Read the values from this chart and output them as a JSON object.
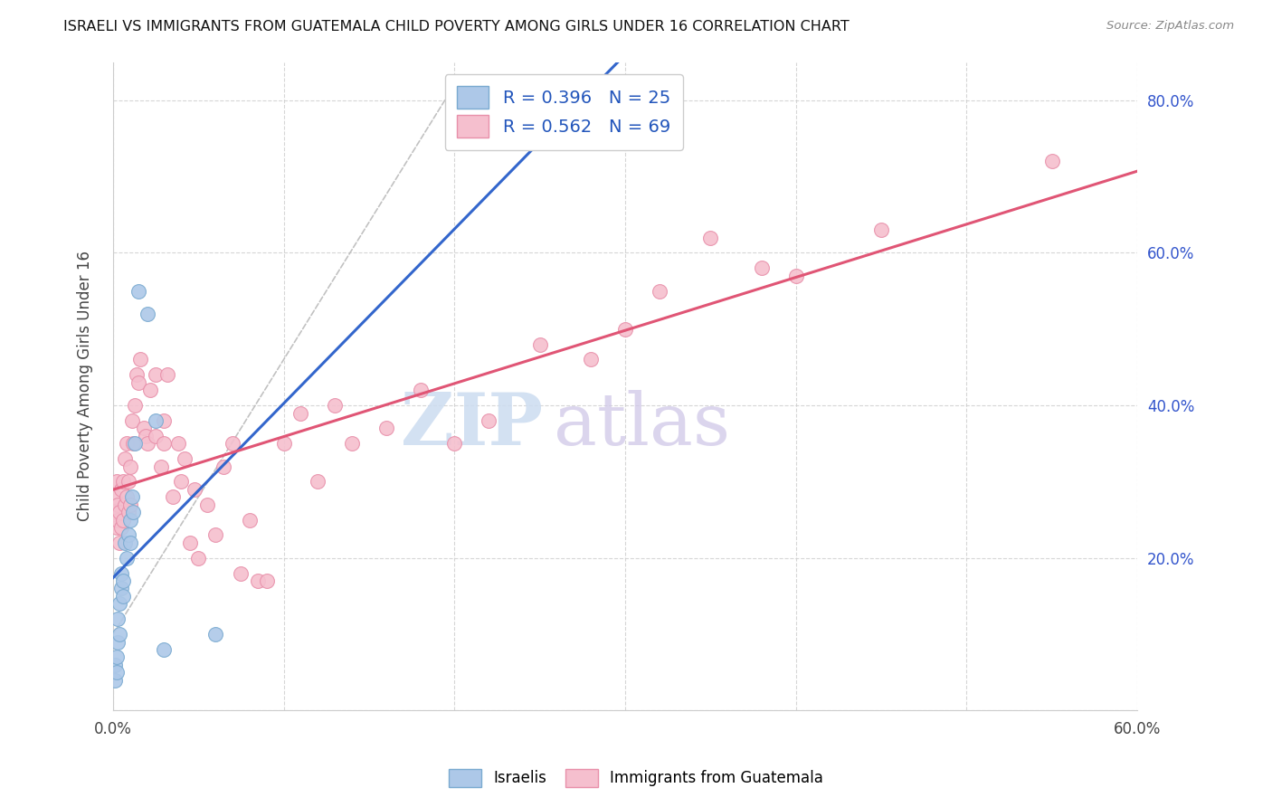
{
  "title": "ISRAELI VS IMMIGRANTS FROM GUATEMALA CHILD POVERTY AMONG GIRLS UNDER 16 CORRELATION CHART",
  "source": "Source: ZipAtlas.com",
  "ylabel_label": "Child Poverty Among Girls Under 16",
  "x_min": 0.0,
  "x_max": 0.6,
  "y_min": 0.0,
  "y_max": 0.85,
  "israeli_color": "#adc8e8",
  "israeli_color_edge": "#7aaad0",
  "guatemala_color": "#f5bfce",
  "guatemala_color_edge": "#e890aa",
  "trend_israeli_color": "#3366cc",
  "trend_guatemala_color": "#e05575",
  "dashed_line_color": "#bbbbbb",
  "r_israeli": 0.396,
  "n_israeli": 25,
  "r_guatemala": 0.562,
  "n_guatemala": 69,
  "legend_text_color": "#2255bb",
  "watermark_zip_color": "#ccdcf0",
  "watermark_atlas_color": "#d0c8e8",
  "israeli_x": [
    0.001,
    0.001,
    0.002,
    0.002,
    0.003,
    0.003,
    0.004,
    0.004,
    0.005,
    0.005,
    0.006,
    0.006,
    0.007,
    0.008,
    0.009,
    0.01,
    0.01,
    0.011,
    0.012,
    0.013,
    0.015,
    0.02,
    0.025,
    0.03,
    0.06
  ],
  "israeli_y": [
    0.04,
    0.06,
    0.07,
    0.05,
    0.09,
    0.12,
    0.1,
    0.14,
    0.16,
    0.18,
    0.15,
    0.17,
    0.22,
    0.2,
    0.23,
    0.25,
    0.22,
    0.28,
    0.26,
    0.35,
    0.55,
    0.52,
    0.38,
    0.08,
    0.1
  ],
  "guatemala_x": [
    0.001,
    0.001,
    0.002,
    0.002,
    0.003,
    0.003,
    0.004,
    0.004,
    0.005,
    0.005,
    0.006,
    0.006,
    0.007,
    0.007,
    0.008,
    0.008,
    0.009,
    0.009,
    0.01,
    0.01,
    0.011,
    0.012,
    0.013,
    0.014,
    0.015,
    0.016,
    0.018,
    0.019,
    0.02,
    0.022,
    0.025,
    0.025,
    0.028,
    0.03,
    0.03,
    0.032,
    0.035,
    0.038,
    0.04,
    0.042,
    0.045,
    0.048,
    0.05,
    0.055,
    0.06,
    0.065,
    0.07,
    0.075,
    0.08,
    0.085,
    0.09,
    0.1,
    0.11,
    0.12,
    0.13,
    0.14,
    0.16,
    0.18,
    0.2,
    0.22,
    0.25,
    0.28,
    0.3,
    0.32,
    0.35,
    0.38,
    0.4,
    0.45,
    0.55
  ],
  "guatemala_y": [
    0.26,
    0.28,
    0.24,
    0.3,
    0.25,
    0.27,
    0.22,
    0.26,
    0.24,
    0.29,
    0.25,
    0.3,
    0.27,
    0.33,
    0.28,
    0.35,
    0.26,
    0.3,
    0.32,
    0.27,
    0.38,
    0.35,
    0.4,
    0.44,
    0.43,
    0.46,
    0.37,
    0.36,
    0.35,
    0.42,
    0.36,
    0.44,
    0.32,
    0.38,
    0.35,
    0.44,
    0.28,
    0.35,
    0.3,
    0.33,
    0.22,
    0.29,
    0.2,
    0.27,
    0.23,
    0.32,
    0.35,
    0.18,
    0.25,
    0.17,
    0.17,
    0.35,
    0.39,
    0.3,
    0.4,
    0.35,
    0.37,
    0.42,
    0.35,
    0.38,
    0.48,
    0.46,
    0.5,
    0.55,
    0.62,
    0.58,
    0.57,
    0.63,
    0.72
  ]
}
